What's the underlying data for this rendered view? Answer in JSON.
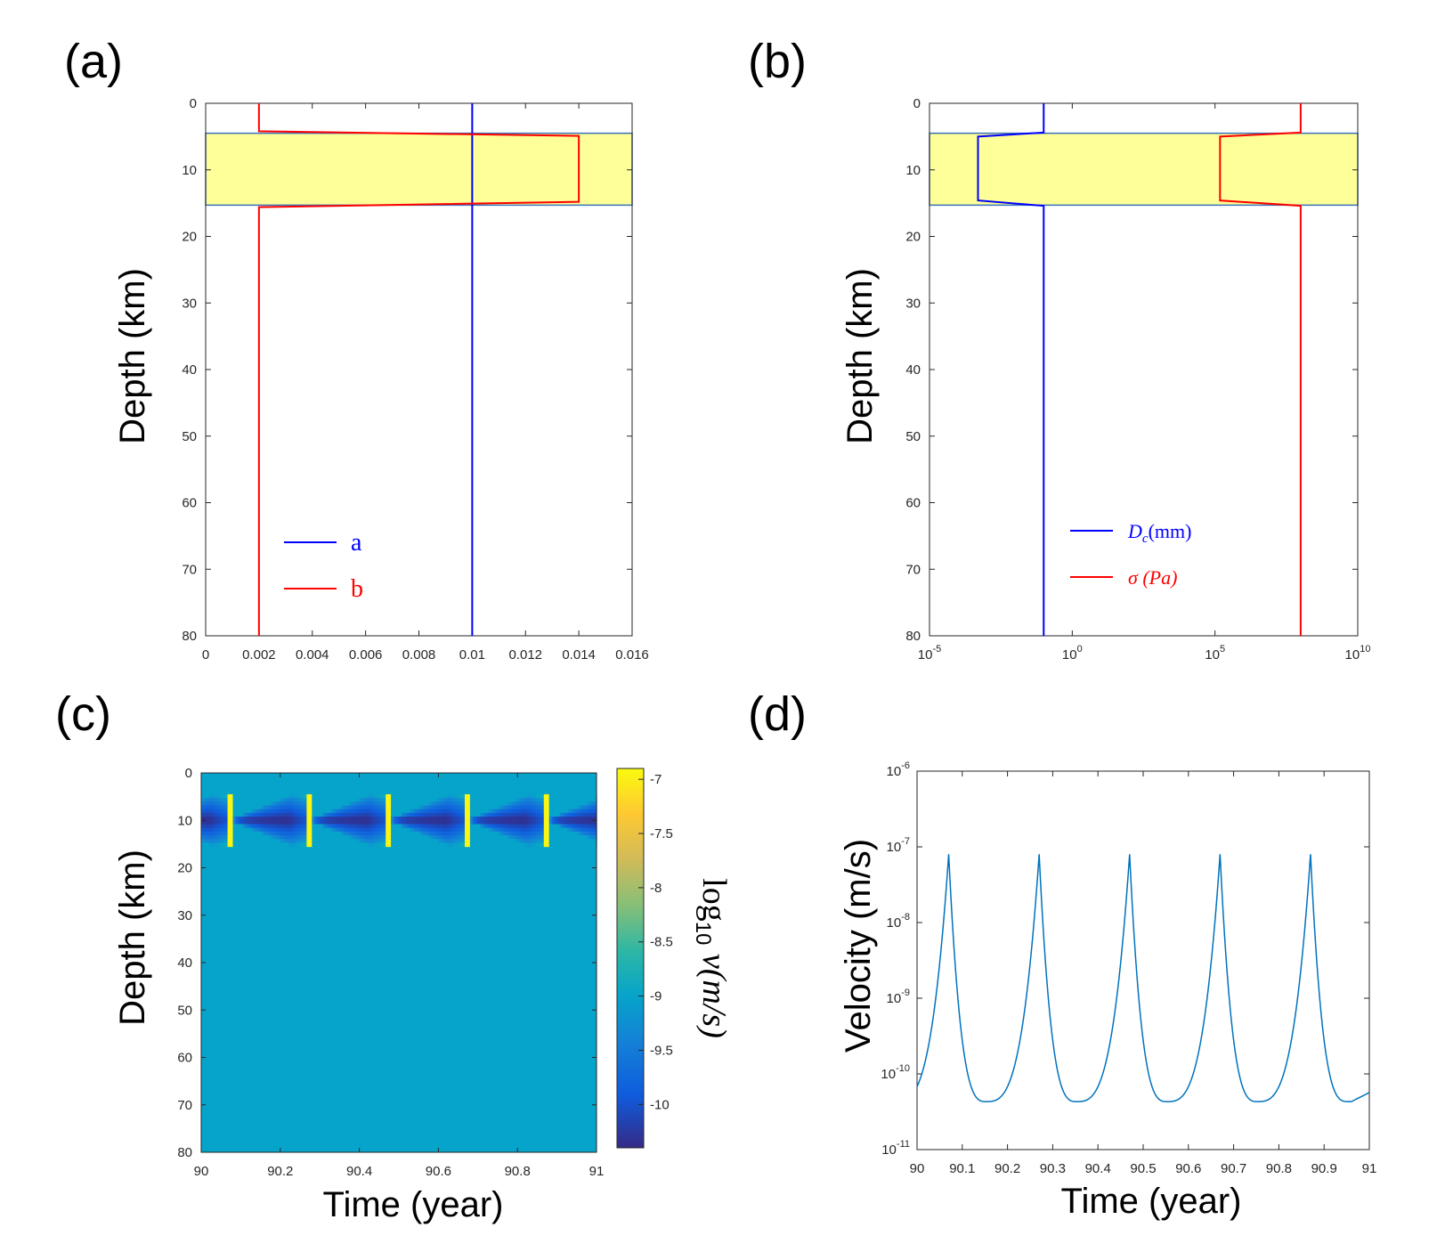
{
  "chart_data": [
    {
      "panel_label": "(a)",
      "type": "line",
      "ylabel": "Depth (km)",
      "xlabel": "",
      "xlim": [
        0,
        0.016
      ],
      "ylim": [
        0,
        80
      ],
      "y_reversed": true,
      "xticks": [
        "0",
        "0.002",
        "0.004",
        "0.006",
        "0.008",
        "0.01",
        "0.012",
        "0.014",
        "0.016"
      ],
      "yticks": [
        "0",
        "10",
        "20",
        "30",
        "40",
        "50",
        "60",
        "70",
        "80"
      ],
      "highlight_band": {
        "y": [
          4.5,
          15.3
        ],
        "color": "#ffff99"
      },
      "legend_position": "bottom-left",
      "series": [
        {
          "name": "a",
          "color": "#0000ff",
          "x": [
            0.01,
            0.01,
            0.01,
            0.01
          ],
          "y": [
            0,
            5,
            15,
            80
          ]
        },
        {
          "name": "b",
          "color": "#ff0000",
          "x": [
            0.002,
            0.002,
            0.014,
            0.014,
            0.002,
            0.002
          ],
          "y": [
            0,
            4.2,
            4.9,
            14.8,
            15.6,
            80
          ]
        }
      ]
    },
    {
      "panel_label": "(b)",
      "type": "line",
      "ylabel": "Depth (km)",
      "xlabel": "",
      "xscale": "log",
      "xlim": [
        1e-05,
        10000000000.0
      ],
      "ylim": [
        0,
        80
      ],
      "y_reversed": true,
      "xticks": [
        {
          "base": "10",
          "exp": "-5"
        },
        {
          "base": "10",
          "exp": "0"
        },
        {
          "base": "10",
          "exp": "5"
        },
        {
          "base": "10",
          "exp": "10"
        }
      ],
      "yticks": [
        "0",
        "10",
        "20",
        "30",
        "40",
        "50",
        "60",
        "70",
        "80"
      ],
      "highlight_band": {
        "y": [
          4.5,
          15.3
        ],
        "color": "#ffff99"
      },
      "legend_position": "bottom-center",
      "series": [
        {
          "name": "D_c(mm)",
          "legend_main": "D",
          "legend_sub": "c",
          "legend_rest": "(mm)",
          "color": "#0000ff",
          "x": [
            0.1,
            0.1,
            0.0005,
            0.0005,
            0.1,
            0.1
          ],
          "y": [
            0,
            4.4,
            5,
            14.6,
            15.4,
            80
          ]
        },
        {
          "name": "σ (Pa)",
          "legend_main": "σ (Pa)",
          "legend_sub": "",
          "legend_rest": "",
          "color": "#ff0000",
          "x": [
            100000000.0,
            100000000.0,
            150000.0,
            150000.0,
            100000000.0,
            100000000.0
          ],
          "y": [
            0,
            4.4,
            5,
            14.6,
            15.4,
            80
          ]
        }
      ]
    },
    {
      "panel_label": "(c)",
      "type": "heatmap",
      "xlabel": "Time (year)",
      "ylabel": "Depth (km)",
      "xlim": [
        90,
        91
      ],
      "ylim": [
        0,
        80
      ],
      "y_reversed": true,
      "xticks": [
        "90",
        "90.2",
        "90.4",
        "90.6",
        "90.8",
        "91"
      ],
      "yticks": [
        "0",
        "10",
        "20",
        "30",
        "40",
        "50",
        "60",
        "70",
        "80"
      ],
      "colorbar": {
        "label_main": "log",
        "label_sub": "10",
        "label_rest": " v(m/s)",
        "range": [
          -10.4,
          -6.9
        ],
        "ticks": [
          "-7",
          "-7.5",
          "-8",
          "-8.5",
          "-9",
          "-9.5",
          "-10"
        ],
        "tick_values": [
          -7,
          -7.5,
          -8,
          -8.5,
          -9,
          -9.5,
          -10
        ]
      },
      "background_value": -9,
      "event_times": [
        90.07,
        90.27,
        90.47,
        90.67,
        90.87
      ],
      "seismogenic_zone": [
        4.5,
        15.5
      ],
      "min_value": -10.4,
      "max_value": -6.9
    },
    {
      "panel_label": "(d)",
      "type": "line",
      "xlabel": "Time (year)",
      "ylabel": "Velocity (m/s)",
      "yscale": "log",
      "xlim": [
        90,
        91
      ],
      "ylim": [
        1e-11,
        1e-06
      ],
      "xticks": [
        "90",
        "90.1",
        "90.2",
        "90.3",
        "90.4",
        "90.5",
        "90.6",
        "90.7",
        "90.8",
        "90.9",
        "91"
      ],
      "yticks": [
        {
          "base": "10",
          "exp": "-6"
        },
        {
          "base": "10",
          "exp": "-7"
        },
        {
          "base": "10",
          "exp": "-8"
        },
        {
          "base": "10",
          "exp": "-9"
        },
        {
          "base": "10",
          "exp": "-10"
        },
        {
          "base": "10",
          "exp": "-11"
        }
      ],
      "series": [
        {
          "color": "#0072bd",
          "peak_times": [
            90.07,
            90.27,
            90.47,
            90.67,
            90.87
          ],
          "peak_velocity": 8e-08,
          "min_velocity": 4.3e-11,
          "start_velocity": 6e-11,
          "end_velocity": 5.3e-11
        }
      ]
    }
  ]
}
